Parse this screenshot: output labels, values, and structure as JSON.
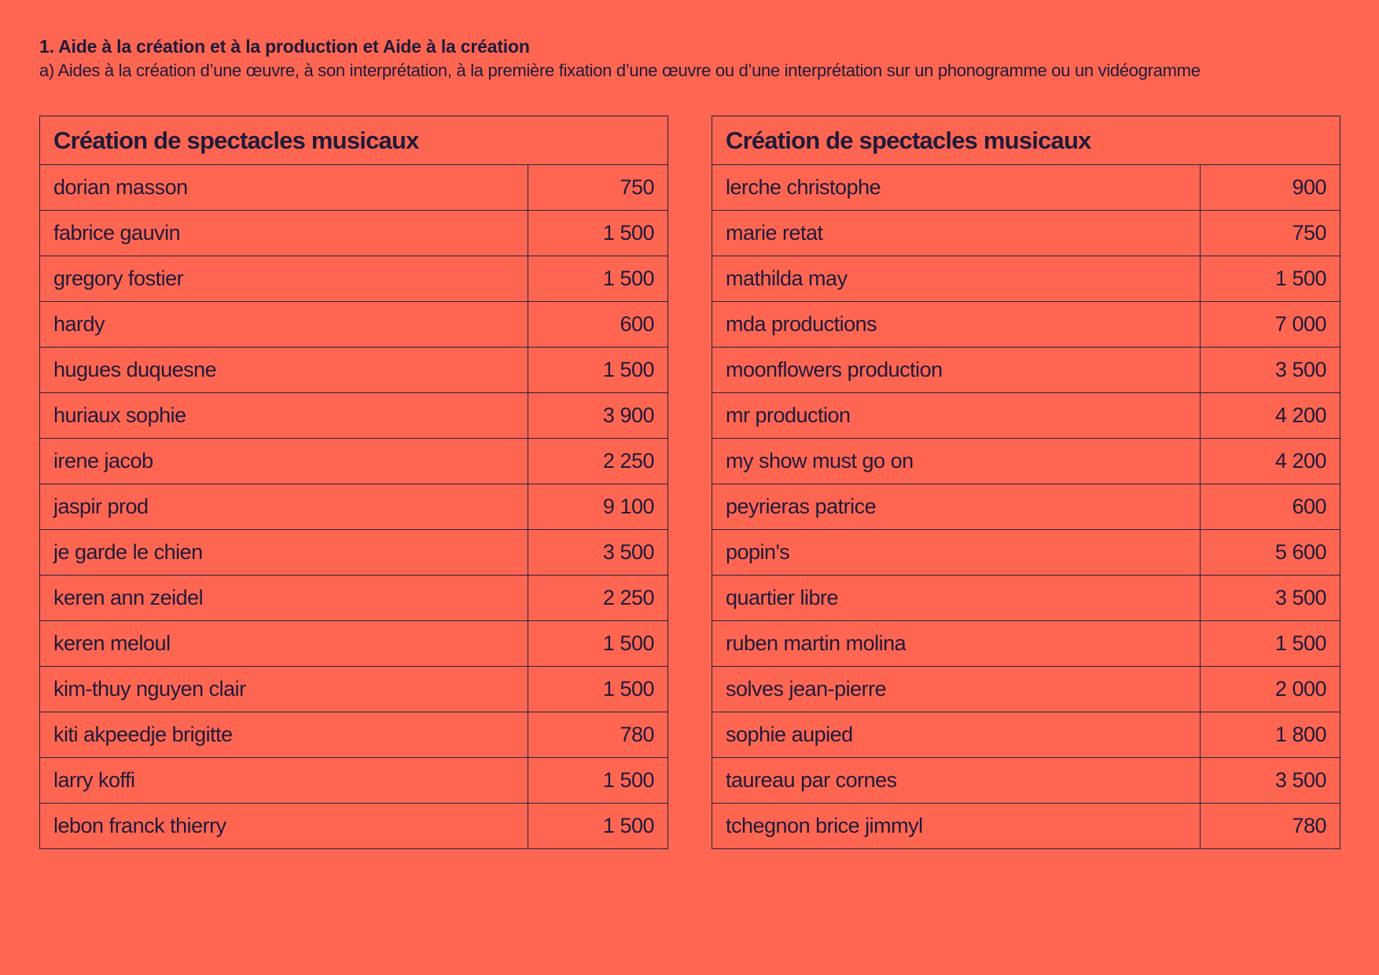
{
  "header": {
    "title": "1. Aide à la création et à la production et Aide à la création",
    "subtitle": "a) Aides à la création d’une œuvre, à son interprétation, à la première fixation d’une œuvre ou d’une interprétation sur un phonogramme ou un vidéogramme"
  },
  "tables": [
    {
      "title": "Création de spectacles musicaux",
      "rows": [
        {
          "name": "dorian masson",
          "amount": "750"
        },
        {
          "name": "fabrice gauvin",
          "amount": "1 500"
        },
        {
          "name": "gregory fostier",
          "amount": "1 500"
        },
        {
          "name": "hardy",
          "amount": "600"
        },
        {
          "name": "hugues duquesne",
          "amount": "1 500"
        },
        {
          "name": "huriaux sophie",
          "amount": "3 900"
        },
        {
          "name": "irene jacob",
          "amount": "2 250"
        },
        {
          "name": "jaspir prod",
          "amount": "9 100"
        },
        {
          "name": "je garde le chien",
          "amount": "3 500"
        },
        {
          "name": "keren ann zeidel",
          "amount": "2 250"
        },
        {
          "name": "keren meloul",
          "amount": "1 500"
        },
        {
          "name": "kim-thuy nguyen clair",
          "amount": "1 500"
        },
        {
          "name": "kiti akpeedje brigitte",
          "amount": "780"
        },
        {
          "name": "larry koffi",
          "amount": "1 500"
        },
        {
          "name": "lebon franck thierry",
          "amount": "1 500"
        }
      ]
    },
    {
      "title": "Création de spectacles musicaux",
      "rows": [
        {
          "name": "lerche christophe",
          "amount": "900"
        },
        {
          "name": "marie retat",
          "amount": "750"
        },
        {
          "name": "mathilda may",
          "amount": "1 500"
        },
        {
          "name": "mda productions",
          "amount": "7 000"
        },
        {
          "name": "moonflowers production",
          "amount": "3 500"
        },
        {
          "name": "mr production",
          "amount": "4 200"
        },
        {
          "name": "my show must go on",
          "amount": "4 200"
        },
        {
          "name": "peyrieras patrice",
          "amount": "600"
        },
        {
          "name": "popin's",
          "amount": "5 600"
        },
        {
          "name": "quartier libre",
          "amount": "3 500"
        },
        {
          "name": "ruben martin molina",
          "amount": "1 500"
        },
        {
          "name": "solves jean-pierre",
          "amount": "2 000"
        },
        {
          "name": "sophie aupied",
          "amount": "1 800"
        },
        {
          "name": "taureau par cornes",
          "amount": "3 500"
        },
        {
          "name": "tchegnon brice jimmyl",
          "amount": "780"
        }
      ]
    }
  ],
  "colors": {
    "background": "#ff6652",
    "text": "#1f1a3a",
    "border": "#2a2140"
  }
}
